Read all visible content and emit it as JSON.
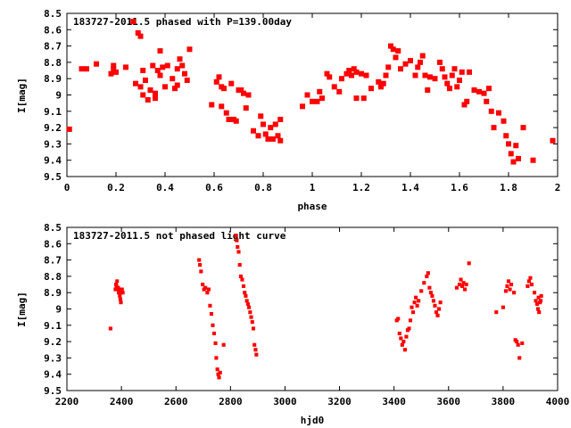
{
  "chart_data": [
    {
      "type": "scatter",
      "title": "183727-2011.5 phased with P=139.00day",
      "xlabel": "phase",
      "ylabel": "I[mag]",
      "xlim": [
        0,
        2
      ],
      "ylim": [
        9.5,
        8.5
      ],
      "y_inverted": true,
      "grid": false,
      "marker_color": "#ff0000",
      "x_ticks": [
        "0",
        "0.2",
        "0.4",
        "0.6",
        "0.8",
        "1",
        "1.2",
        "1.4",
        "1.6",
        "1.8",
        "2"
      ],
      "y_ticks": [
        "8.5",
        "8.6",
        "8.7",
        "8.8",
        "8.9",
        "9",
        "9.1",
        "9.2",
        "9.3",
        "9.4",
        "9.5"
      ],
      "series": [
        {
          "points": [
            [
              0.01,
              9.21
            ],
            [
              0.06,
              8.84
            ],
            [
              0.08,
              8.84
            ],
            [
              0.12,
              8.81
            ],
            [
              0.18,
              8.87
            ],
            [
              0.19,
              8.84
            ],
            [
              0.19,
              8.82
            ],
            [
              0.2,
              8.86
            ],
            [
              0.24,
              8.83
            ],
            [
              0.27,
              8.55
            ],
            [
              0.28,
              8.93
            ],
            [
              0.29,
              8.62
            ],
            [
              0.3,
              8.64
            ],
            [
              0.3,
              8.95
            ],
            [
              0.31,
              8.85
            ],
            [
              0.31,
              9.0
            ],
            [
              0.32,
              8.91
            ],
            [
              0.33,
              9.03
            ],
            [
              0.34,
              8.97
            ],
            [
              0.35,
              8.82
            ],
            [
              0.36,
              8.99
            ],
            [
              0.36,
              9.02
            ],
            [
              0.37,
              8.85
            ],
            [
              0.38,
              8.88
            ],
            [
              0.38,
              8.73
            ],
            [
              0.39,
              8.83
            ],
            [
              0.4,
              8.95
            ],
            [
              0.41,
              8.82
            ],
            [
              0.43,
              8.9
            ],
            [
              0.44,
              8.96
            ],
            [
              0.45,
              8.84
            ],
            [
              0.45,
              8.94
            ],
            [
              0.46,
              8.78
            ],
            [
              0.47,
              8.82
            ],
            [
              0.48,
              8.87
            ],
            [
              0.49,
              8.91
            ],
            [
              0.5,
              8.72
            ],
            [
              0.59,
              9.06
            ],
            [
              0.61,
              8.92
            ],
            [
              0.62,
              8.89
            ],
            [
              0.63,
              8.95
            ],
            [
              0.63,
              9.07
            ],
            [
              0.64,
              8.96
            ],
            [
              0.65,
              9.11
            ],
            [
              0.66,
              9.15
            ],
            [
              0.67,
              8.93
            ],
            [
              0.68,
              9.15
            ],
            [
              0.69,
              9.16
            ],
            [
              0.7,
              8.97
            ],
            [
              0.71,
              8.97
            ],
            [
              0.72,
              8.99
            ],
            [
              0.73,
              9.08
            ],
            [
              0.74,
              9.0
            ],
            [
              0.76,
              9.22
            ],
            [
              0.78,
              9.25
            ],
            [
              0.79,
              9.13
            ],
            [
              0.8,
              9.18
            ],
            [
              0.81,
              9.24
            ],
            [
              0.82,
              9.27
            ],
            [
              0.83,
              9.2
            ],
            [
              0.84,
              9.27
            ],
            [
              0.85,
              9.18
            ],
            [
              0.86,
              9.25
            ],
            [
              0.87,
              9.28
            ],
            [
              0.87,
              9.15
            ],
            [
              0.96,
              9.07
            ],
            [
              0.98,
              9.0
            ],
            [
              1.0,
              9.04
            ],
            [
              1.02,
              9.04
            ],
            [
              1.03,
              8.98
            ],
            [
              1.04,
              9.02
            ],
            [
              1.06,
              8.87
            ],
            [
              1.07,
              8.89
            ],
            [
              1.09,
              8.95
            ],
            [
              1.11,
              8.98
            ],
            [
              1.12,
              8.9
            ],
            [
              1.14,
              8.87
            ],
            [
              1.15,
              8.85
            ],
            [
              1.16,
              8.88
            ],
            [
              1.17,
              8.84
            ],
            [
              1.18,
              8.86
            ],
            [
              1.18,
              9.02
            ],
            [
              1.2,
              8.87
            ],
            [
              1.21,
              9.02
            ],
            [
              1.22,
              8.88
            ],
            [
              1.24,
              8.96
            ],
            [
              1.27,
              8.92
            ],
            [
              1.28,
              8.95
            ],
            [
              1.29,
              8.93
            ],
            [
              1.3,
              8.88
            ],
            [
              1.31,
              8.83
            ],
            [
              1.32,
              8.7
            ],
            [
              1.33,
              8.72
            ],
            [
              1.34,
              8.77
            ],
            [
              1.35,
              8.73
            ],
            [
              1.36,
              8.84
            ],
            [
              1.38,
              8.81
            ],
            [
              1.4,
              8.79
            ],
            [
              1.42,
              8.88
            ],
            [
              1.43,
              8.83
            ],
            [
              1.44,
              8.8
            ],
            [
              1.45,
              8.76
            ],
            [
              1.46,
              8.88
            ],
            [
              1.47,
              8.97
            ],
            [
              1.48,
              8.89
            ],
            [
              1.5,
              8.9
            ],
            [
              1.52,
              8.8
            ],
            [
              1.53,
              8.84
            ],
            [
              1.54,
              8.89
            ],
            [
              1.55,
              8.93
            ],
            [
              1.56,
              8.96
            ],
            [
              1.57,
              8.88
            ],
            [
              1.58,
              8.84
            ],
            [
              1.59,
              8.95
            ],
            [
              1.6,
              8.91
            ],
            [
              1.61,
              8.86
            ],
            [
              1.62,
              9.06
            ],
            [
              1.63,
              9.04
            ],
            [
              1.64,
              8.86
            ],
            [
              1.66,
              8.97
            ],
            [
              1.68,
              8.98
            ],
            [
              1.7,
              8.99
            ],
            [
              1.71,
              9.04
            ],
            [
              1.72,
              8.96
            ],
            [
              1.73,
              9.1
            ],
            [
              1.74,
              9.2
            ],
            [
              1.76,
              9.11
            ],
            [
              1.78,
              9.16
            ],
            [
              1.79,
              9.25
            ],
            [
              1.8,
              9.3
            ],
            [
              1.81,
              9.36
            ],
            [
              1.82,
              9.41
            ],
            [
              1.83,
              9.31
            ],
            [
              1.84,
              9.39
            ],
            [
              1.86,
              9.2
            ],
            [
              1.9,
              9.4
            ],
            [
              1.98,
              9.28
            ]
          ]
        }
      ]
    },
    {
      "type": "scatter",
      "title": "183727-2011.5 not phased light curve",
      "xlabel": "hjd0",
      "ylabel": "I[mag]",
      "xlim": [
        2200,
        4000
      ],
      "ylim": [
        9.5,
        8.5
      ],
      "y_inverted": true,
      "grid": false,
      "marker_color": "#ff0000",
      "x_ticks": [
        "2200",
        "2400",
        "2600",
        "2800",
        "3000",
        "3200",
        "3400",
        "3600",
        "3800",
        "4000"
      ],
      "y_ticks": [
        "8.5",
        "8.6",
        "8.7",
        "8.8",
        "8.9",
        "9",
        "9.1",
        "9.2",
        "9.3",
        "9.4",
        "9.5"
      ],
      "series": [
        {
          "points": [
            [
              2360,
              9.12
            ],
            [
              2378,
              8.88
            ],
            [
              2380,
              8.85
            ],
            [
              2382,
              8.86
            ],
            [
              2384,
              8.83
            ],
            [
              2386,
              8.88
            ],
            [
              2388,
              8.87
            ],
            [
              2390,
              8.9
            ],
            [
              2392,
              8.88
            ],
            [
              2394,
              8.92
            ],
            [
              2396,
              8.94
            ],
            [
              2398,
              8.96
            ],
            [
              2400,
              8.9
            ],
            [
              2402,
              8.88
            ],
            [
              2405,
              8.9
            ],
            [
              2685,
              8.7
            ],
            [
              2688,
              8.73
            ],
            [
              2692,
              8.77
            ],
            [
              2698,
              8.85
            ],
            [
              2703,
              8.88
            ],
            [
              2708,
              8.87
            ],
            [
              2715,
              8.9
            ],
            [
              2720,
              8.88
            ],
            [
              2725,
              8.98
            ],
            [
              2730,
              9.03
            ],
            [
              2735,
              9.1
            ],
            [
              2740,
              9.15
            ],
            [
              2745,
              9.21
            ],
            [
              2748,
              9.3
            ],
            [
              2752,
              9.37
            ],
            [
              2755,
              9.4
            ],
            [
              2758,
              9.42
            ],
            [
              2762,
              9.39
            ],
            [
              2775,
              9.22
            ],
            [
              2820,
              8.55
            ],
            [
              2823,
              8.58
            ],
            [
              2826,
              8.62
            ],
            [
              2830,
              8.65
            ],
            [
              2834,
              8.73
            ],
            [
              2838,
              8.8
            ],
            [
              2843,
              8.82
            ],
            [
              2848,
              8.86
            ],
            [
              2852,
              8.9
            ],
            [
              2856,
              8.92
            ],
            [
              2860,
              8.95
            ],
            [
              2864,
              8.97
            ],
            [
              2868,
              8.99
            ],
            [
              2872,
              9.02
            ],
            [
              2876,
              9.05
            ],
            [
              2880,
              9.08
            ],
            [
              2884,
              9.12
            ],
            [
              2888,
              9.22
            ],
            [
              2892,
              9.25
            ],
            [
              2895,
              9.28
            ],
            [
              3410,
              9.07
            ],
            [
              3415,
              9.06
            ],
            [
              3420,
              9.15
            ],
            [
              3425,
              9.18
            ],
            [
              3430,
              9.22
            ],
            [
              3435,
              9.2
            ],
            [
              3440,
              9.25
            ],
            [
              3445,
              9.17
            ],
            [
              3450,
              9.13
            ],
            [
              3455,
              9.12
            ],
            [
              3460,
              9.07
            ],
            [
              3465,
              8.99
            ],
            [
              3470,
              9.02
            ],
            [
              3475,
              8.96
            ],
            [
              3480,
              8.93
            ],
            [
              3485,
              8.98
            ],
            [
              3490,
              8.95
            ],
            [
              3500,
              8.89
            ],
            [
              3510,
              8.84
            ],
            [
              3520,
              8.8
            ],
            [
              3525,
              8.78
            ],
            [
              3530,
              8.87
            ],
            [
              3535,
              8.9
            ],
            [
              3540,
              8.92
            ],
            [
              3545,
              8.95
            ],
            [
              3550,
              8.98
            ],
            [
              3555,
              9.02
            ],
            [
              3560,
              9.04
            ],
            [
              3565,
              9.0
            ],
            [
              3570,
              8.96
            ],
            [
              3630,
              8.87
            ],
            [
              3640,
              8.85
            ],
            [
              3645,
              8.82
            ],
            [
              3650,
              8.86
            ],
            [
              3655,
              8.84
            ],
            [
              3660,
              8.88
            ],
            [
              3665,
              8.85
            ],
            [
              3675,
              8.72
            ],
            [
              3775,
              9.02
            ],
            [
              3800,
              8.99
            ],
            [
              3810,
              8.89
            ],
            [
              3815,
              8.86
            ],
            [
              3820,
              8.83
            ],
            [
              3825,
              8.88
            ],
            [
              3830,
              8.85
            ],
            [
              3840,
              8.9
            ],
            [
              3845,
              9.19
            ],
            [
              3850,
              9.2
            ],
            [
              3855,
              9.22
            ],
            [
              3860,
              9.3
            ],
            [
              3870,
              9.21
            ],
            [
              3890,
              8.86
            ],
            [
              3895,
              8.83
            ],
            [
              3900,
              8.81
            ],
            [
              3905,
              8.85
            ],
            [
              3915,
              8.9
            ],
            [
              3920,
              8.95
            ],
            [
              3925,
              8.97
            ],
            [
              3928,
              9.0
            ],
            [
              3930,
              8.93
            ],
            [
              3932,
              9.02
            ],
            [
              3935,
              8.96
            ],
            [
              3938,
              8.95
            ],
            [
              3940,
              8.92
            ]
          ]
        }
      ]
    }
  ]
}
